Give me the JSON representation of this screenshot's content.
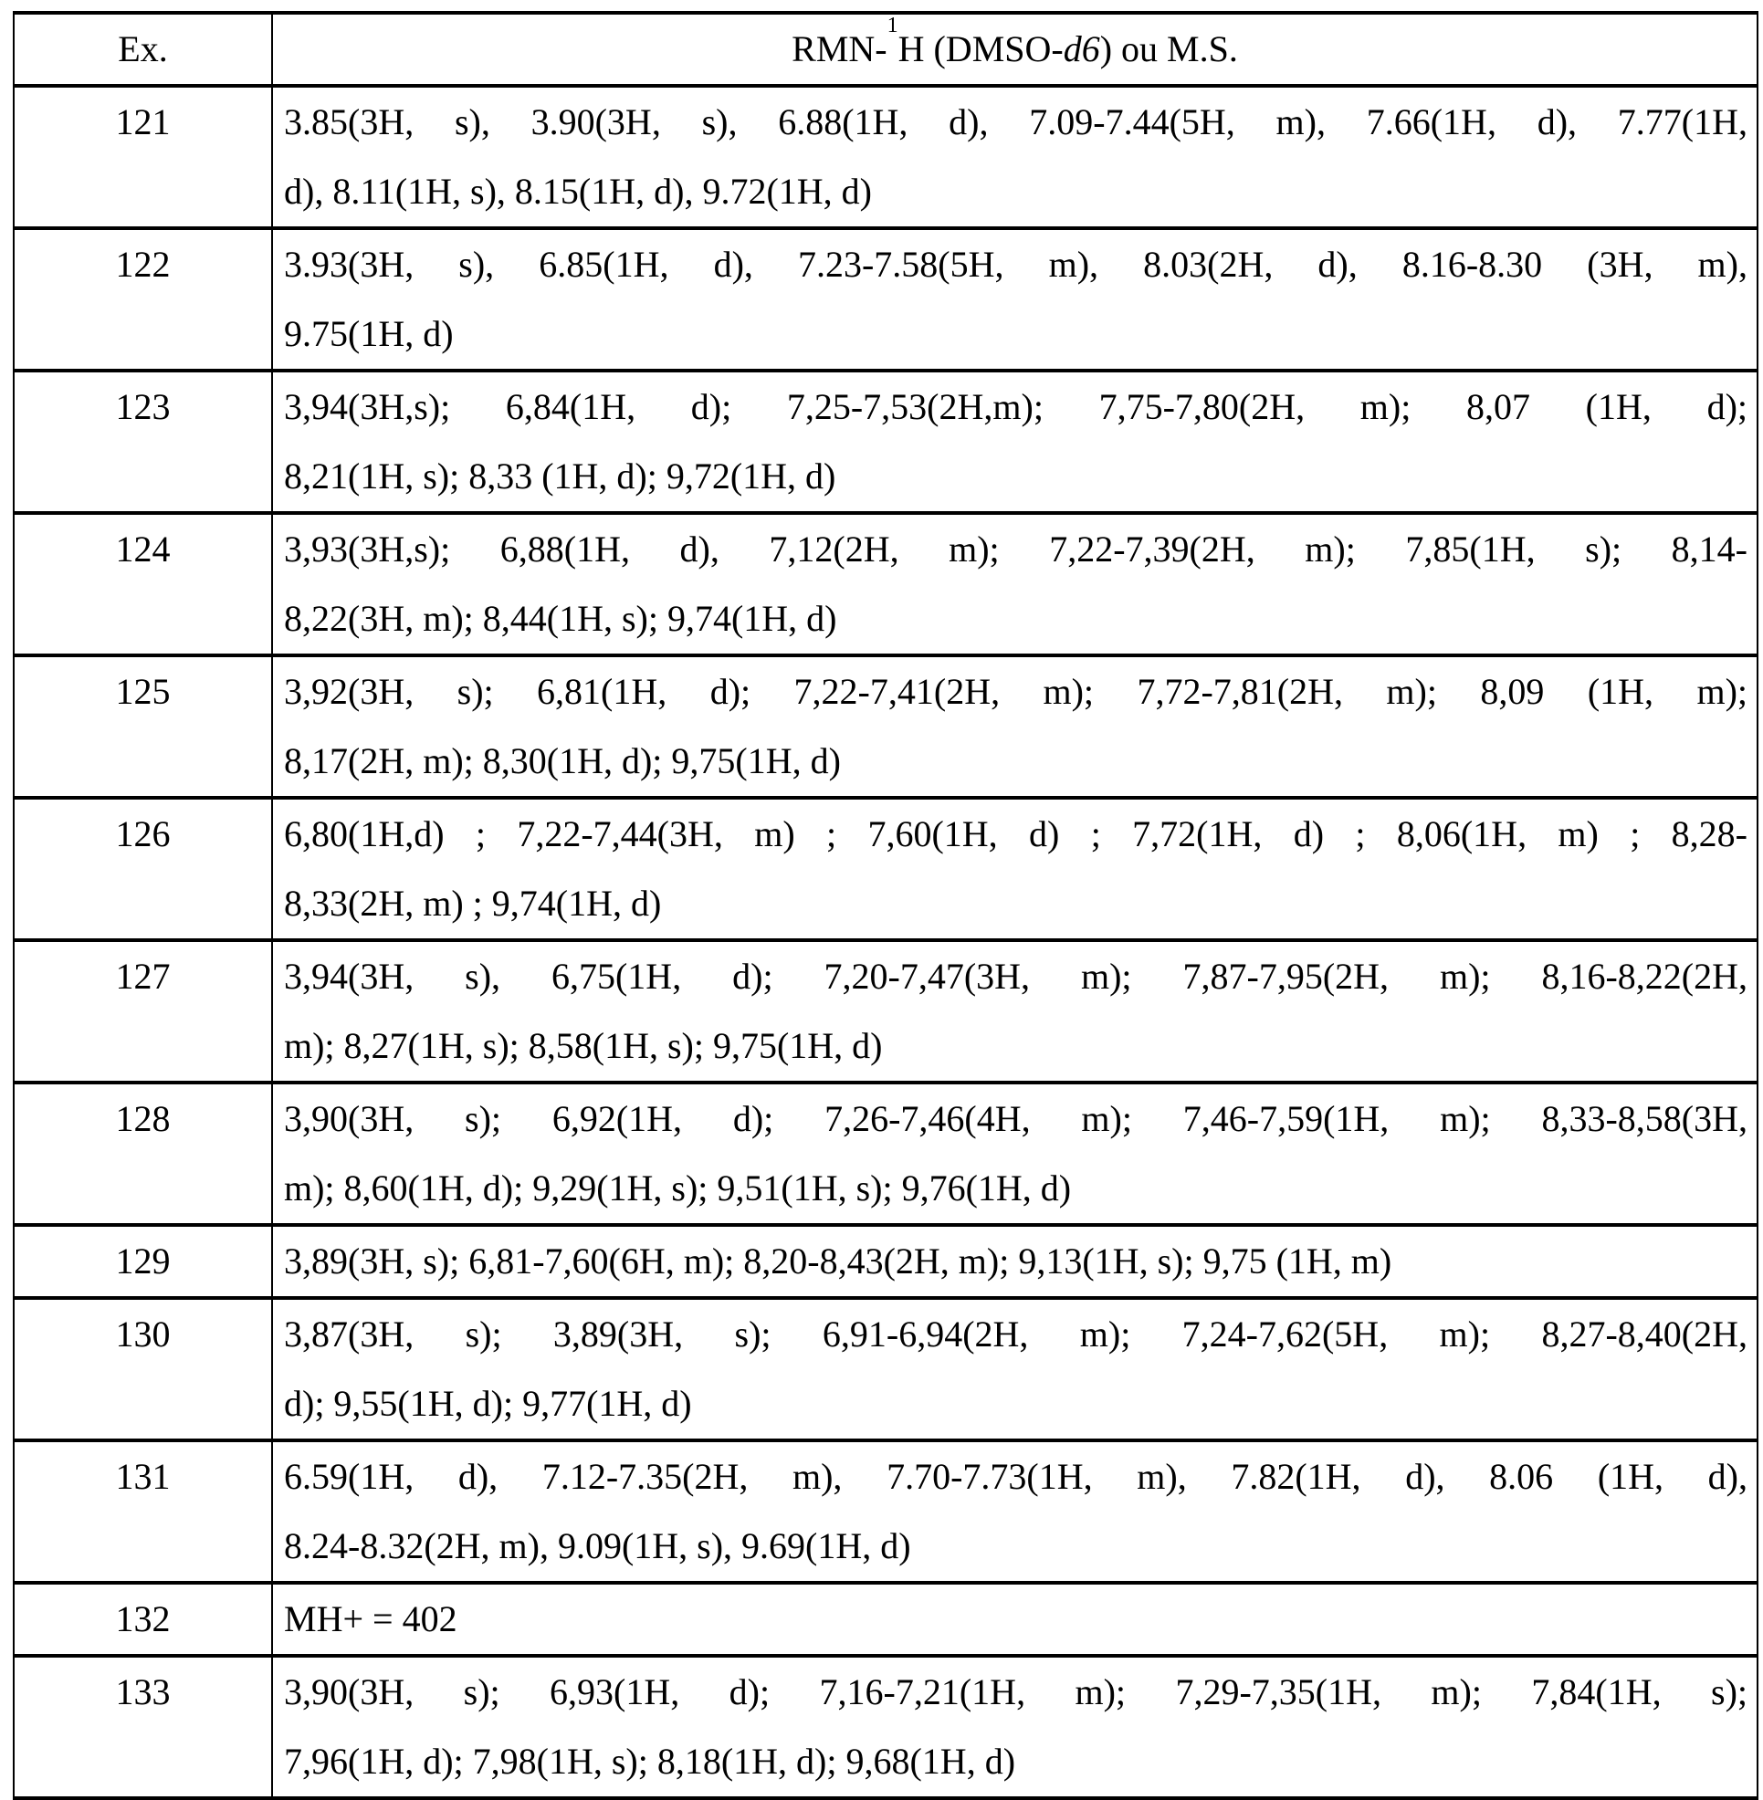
{
  "header": {
    "ex": "Ex.",
    "nmr_prefix": "RMN-",
    "nmr_sup": "1",
    "nmr_mid": "H (DMSO-",
    "nmr_italic": "d6",
    "nmr_suffix": ") ou M.S."
  },
  "rows": [
    {
      "ex": "121",
      "lines": [
        "3.85(3H, s), 3.90(3H, s), 6.88(1H, d), 7.09-7.44(5H, m), 7.66(1H, d), 7.77(1H,",
        "d), 8.11(1H, s), 8.15(1H, d), 9.72(1H, d)"
      ]
    },
    {
      "ex": "122",
      "lines": [
        "3.93(3H, s), 6.85(1H, d), 7.23-7.58(5H, m), 8.03(2H, d), 8.16-8.30 (3H, m),",
        "9.75(1H, d)"
      ]
    },
    {
      "ex": "123",
      "lines": [
        "3,94(3H,s); 6,84(1H, d); 7,25-7,53(2H,m); 7,75-7,80(2H, m); 8,07 (1H, d);",
        "8,21(1H, s); 8,33 (1H, d); 9,72(1H, d)"
      ]
    },
    {
      "ex": "124",
      "lines": [
        "3,93(3H,s); 6,88(1H, d), 7,12(2H, m); 7,22-7,39(2H, m); 7,85(1H, s); 8,14-",
        "8,22(3H, m); 8,44(1H, s); 9,74(1H, d)"
      ]
    },
    {
      "ex": "125",
      "lines": [
        "3,92(3H, s); 6,81(1H, d); 7,22-7,41(2H, m); 7,72-7,81(2H, m); 8,09 (1H, m);",
        "8,17(2H, m); 8,30(1H, d); 9,75(1H, d)"
      ]
    },
    {
      "ex": "126",
      "lines": [
        "6,80(1H,d) ; 7,22-7,44(3H, m) ; 7,60(1H, d) ; 7,72(1H, d) ; 8,06(1H, m) ; 8,28-",
        "8,33(2H, m) ; 9,74(1H, d)"
      ]
    },
    {
      "ex": "127",
      "lines": [
        "3,94(3H, s), 6,75(1H, d); 7,20-7,47(3H, m); 7,87-7,95(2H, m); 8,16-8,22(2H,",
        "m); 8,27(1H, s); 8,58(1H, s); 9,75(1H, d)"
      ]
    },
    {
      "ex": "128",
      "lines": [
        "3,90(3H, s); 6,92(1H, d); 7,26-7,46(4H, m); 7,46-7,59(1H, m); 8,33-8,58(3H,",
        "m); 8,60(1H, d); 9,29(1H, s); 9,51(1H, s); 9,76(1H, d)"
      ]
    },
    {
      "ex": "129",
      "lines": [
        "3,89(3H, s); 6,81-7,60(6H, m); 8,20-8,43(2H, m); 9,13(1H, s); 9,75 (1H, m)"
      ]
    },
    {
      "ex": "130",
      "lines": [
        "3,87(3H, s); 3,89(3H, s); 6,91-6,94(2H, m); 7,24-7,62(5H, m); 8,27-8,40(2H,",
        "d); 9,55(1H, d); 9,77(1H, d)"
      ]
    },
    {
      "ex": "131",
      "lines": [
        "6.59(1H, d), 7.12-7.35(2H, m), 7.70-7.73(1H, m), 7.82(1H, d), 8.06 (1H, d),",
        "8.24-8.32(2H, m), 9.09(1H, s), 9.69(1H, d)"
      ]
    },
    {
      "ex": "132",
      "lines": [
        "MH+ = 402"
      ]
    },
    {
      "ex": "133",
      "lines": [
        "3,90(3H, s); 6,93(1H, d); 7,16-7,21(1H, m); 7,29-7,35(1H, m); 7,84(1H, s);",
        "7,96(1H, d); 7,98(1H, s); 8,18(1H, d); 9,68(1H, d)"
      ]
    }
  ]
}
